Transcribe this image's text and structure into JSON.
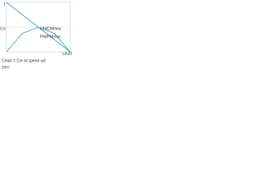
{
  "chart_data": {
    "type": "line",
    "x_label": "ω/ω0",
    "x": [
      0,
      0.25,
      0.5,
      0.75,
      1
    ],
    "series": [
      {
        "name": "CM/CMmax",
        "color": "#3a9cc8",
        "values": [
          1,
          0.75,
          0.5,
          0.25,
          0
        ]
      },
      {
        "name": "PM/PMmax",
        "color": "#3a9cc8",
        "values": [
          0,
          0.375,
          0.5,
          0.375,
          0
        ]
      }
    ],
    "xlim": [
      0,
      1
    ],
    "ylim": [
      0,
      1
    ],
    "yticks": [
      0.5,
      1
    ],
    "grid": true,
    "caption": [
      "Cmax = Cm at speed ω0",
      "zero"
    ]
  }
}
